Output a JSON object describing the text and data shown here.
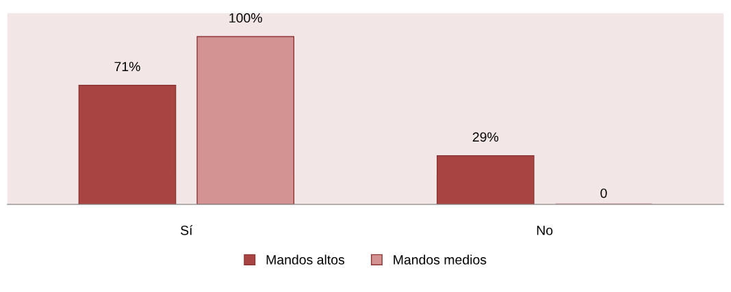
{
  "chart_data": {
    "type": "bar",
    "categories": [
      "Sí",
      "No"
    ],
    "series": [
      {
        "name": "Mandos altos",
        "color": "#a84543",
        "values": [
          71,
          29
        ],
        "value_labels": [
          "71%",
          "29%"
        ]
      },
      {
        "name": "Mandos medios",
        "color": "#d49393",
        "values": [
          100,
          0
        ],
        "value_labels": [
          "100%",
          "0"
        ]
      }
    ],
    "ylim": [
      0,
      114
    ],
    "grid": false,
    "legend": "bottom"
  }
}
